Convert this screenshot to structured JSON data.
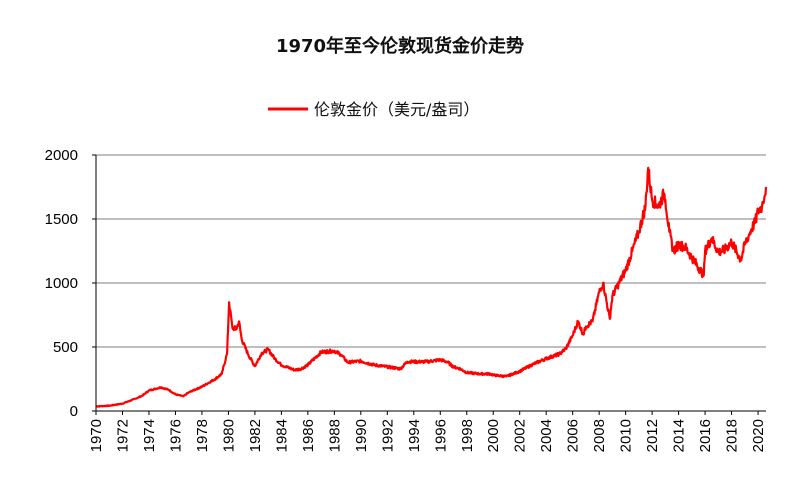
{
  "chart_data": {
    "type": "line",
    "title": "1970年至今伦敦现货金价走势",
    "xlabel": "",
    "ylabel": "",
    "xlim": [
      1970,
      2020.6
    ],
    "ylim": [
      0,
      2000
    ],
    "y_ticks": [
      0,
      500,
      1000,
      1500,
      2000
    ],
    "x_ticks": [
      "1970",
      "1972",
      "1974",
      "1976",
      "1978",
      "1980",
      "1982",
      "1984",
      "1986",
      "1988",
      "1990",
      "1992",
      "1994",
      "1996",
      "1998",
      "2000",
      "2002",
      "2004",
      "2006",
      "2008",
      "2010",
      "2012",
      "2014",
      "2016",
      "2018",
      "2020"
    ],
    "grid": "horizontal",
    "legend_position": "top",
    "series": [
      {
        "name": "伦敦金价（美元/盎司）",
        "color": "#ff0000",
        "x": [
          1970,
          1971,
          1972,
          1973,
          1973.5,
          1974,
          1974.9,
          1975.5,
          1976,
          1976.6,
          1977,
          1978,
          1979,
          1979.5,
          1979.9,
          1980.05,
          1980.3,
          1980.6,
          1980.8,
          1981,
          1981.5,
          1982,
          1982.5,
          1983,
          1983.5,
          1984,
          1985,
          1985.5,
          1986,
          1987,
          1988,
          1988.5,
          1989,
          1990,
          1991,
          1992,
          1993,
          1993.5,
          1994,
          1995,
          1996,
          1996.5,
          1997,
          1997.5,
          1998,
          1999,
          1999.8,
          2000,
          2001,
          2002,
          2003,
          2004,
          2005,
          2005.5,
          2006,
          2006.4,
          2006.8,
          2007,
          2007.5,
          2008,
          2008.3,
          2008.8,
          2009,
          2009.5,
          2010,
          2010.5,
          2011,
          2011.5,
          2011.7,
          2012,
          2012.5,
          2012.9,
          2013,
          2013.3,
          2013.6,
          2014,
          2014.5,
          2015,
          2015.9,
          2016,
          2016.5,
          2017,
          2017.5,
          2018,
          2018.7,
          2019,
          2019.5,
          2019.8,
          2020,
          2020.3,
          2020.6
        ],
        "values": [
          36,
          41,
          58,
          97,
          120,
          160,
          185,
          165,
          130,
          115,
          145,
          190,
          250,
          290,
          450,
          850,
          650,
          640,
          700,
          560,
          440,
          350,
          450,
          480,
          410,
          360,
          320,
          330,
          360,
          460,
          470,
          440,
          380,
          390,
          360,
          345,
          330,
          385,
          385,
          385,
          400,
          385,
          345,
          330,
          300,
          290,
          290,
          280,
          270,
          310,
          365,
          410,
          445,
          490,
          590,
          700,
          600,
          660,
          700,
          930,
          1000,
          720,
          900,
          1000,
          1100,
          1250,
          1400,
          1600,
          1900,
          1650,
          1600,
          1700,
          1650,
          1400,
          1250,
          1300,
          1280,
          1200,
          1060,
          1250,
          1350,
          1240,
          1260,
          1320,
          1180,
          1300,
          1420,
          1480,
          1560,
          1600,
          1750
        ]
      }
    ]
  }
}
